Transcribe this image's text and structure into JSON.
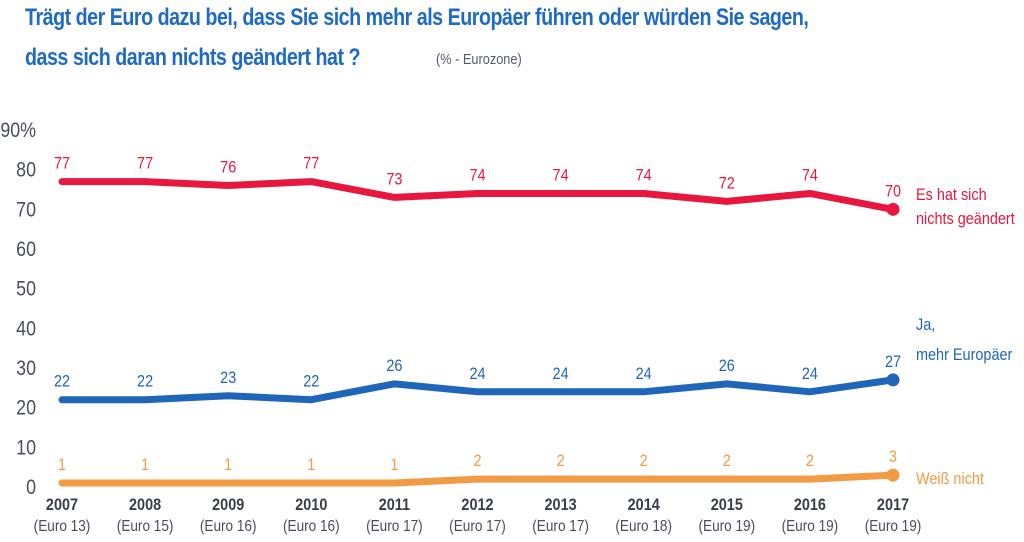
{
  "title": {
    "line1": "Trägt der Euro dazu bei, dass Sie sich mehr als Europäer führen oder würden Sie sagen,",
    "line2": "dass sich daran nichts geändert hat ?",
    "subtitle": "(% - Eurozone)"
  },
  "colors": {
    "title": "#1f6bc4",
    "nichts_geaendert": "#e8173f",
    "ja_mehr_europaeer": "#1f66b8",
    "weiss_nicht": "#f39a45",
    "axis_text": "#4a4e5a"
  },
  "chart_data": {
    "type": "line",
    "title": "Trägt der Euro dazu bei, dass Sie sich mehr als Europäer führen oder würden Sie sagen, dass sich daran nichts geändert hat ?",
    "subtitle": "(% - Eurozone)",
    "xlabel": "",
    "ylabel": "",
    "ylim": [
      0,
      90
    ],
    "yticks": [
      0,
      10,
      20,
      30,
      40,
      50,
      60,
      70,
      80,
      90
    ],
    "ytick_labels": [
      "0",
      "10",
      "20",
      "30",
      "40",
      "50",
      "60",
      "70",
      "80",
      "90%"
    ],
    "grid": false,
    "legend": "right, inline at line ends",
    "categories": [
      "2007",
      "2008",
      "2009",
      "2010",
      "2011",
      "2012",
      "2013",
      "2014",
      "2015",
      "2016",
      "2017"
    ],
    "category_sublabels": [
      "(Euro 13)",
      "(Euro 15)",
      "(Euro 16)",
      "(Euro 16)",
      "(Euro 17)",
      "(Euro 17)",
      "(Euro 17)",
      "(Euro 18)",
      "(Euro 19)",
      "(Euro 19)",
      "(Euro 19)"
    ],
    "series": [
      {
        "key": "nichts",
        "name_lines": [
          "Es hat sich",
          "nichts geändert"
        ],
        "name": "Es hat sich nichts geändert",
        "color": "#e8173f",
        "values": [
          77,
          77,
          76,
          77,
          73,
          74,
          74,
          74,
          72,
          74,
          70
        ]
      },
      {
        "key": "ja",
        "name_lines": [
          "Ja,",
          "mehr Europäer"
        ],
        "name": "Ja, mehr Europäer",
        "color": "#1f66b8",
        "values": [
          22,
          22,
          23,
          22,
          26,
          24,
          24,
          24,
          26,
          24,
          27
        ]
      },
      {
        "key": "weiss",
        "name_lines": [
          "Weiß nicht"
        ],
        "name": "Weiß nicht",
        "color": "#f39a45",
        "values": [
          1,
          1,
          1,
          1,
          1,
          2,
          2,
          2,
          2,
          2,
          3
        ]
      }
    ]
  }
}
